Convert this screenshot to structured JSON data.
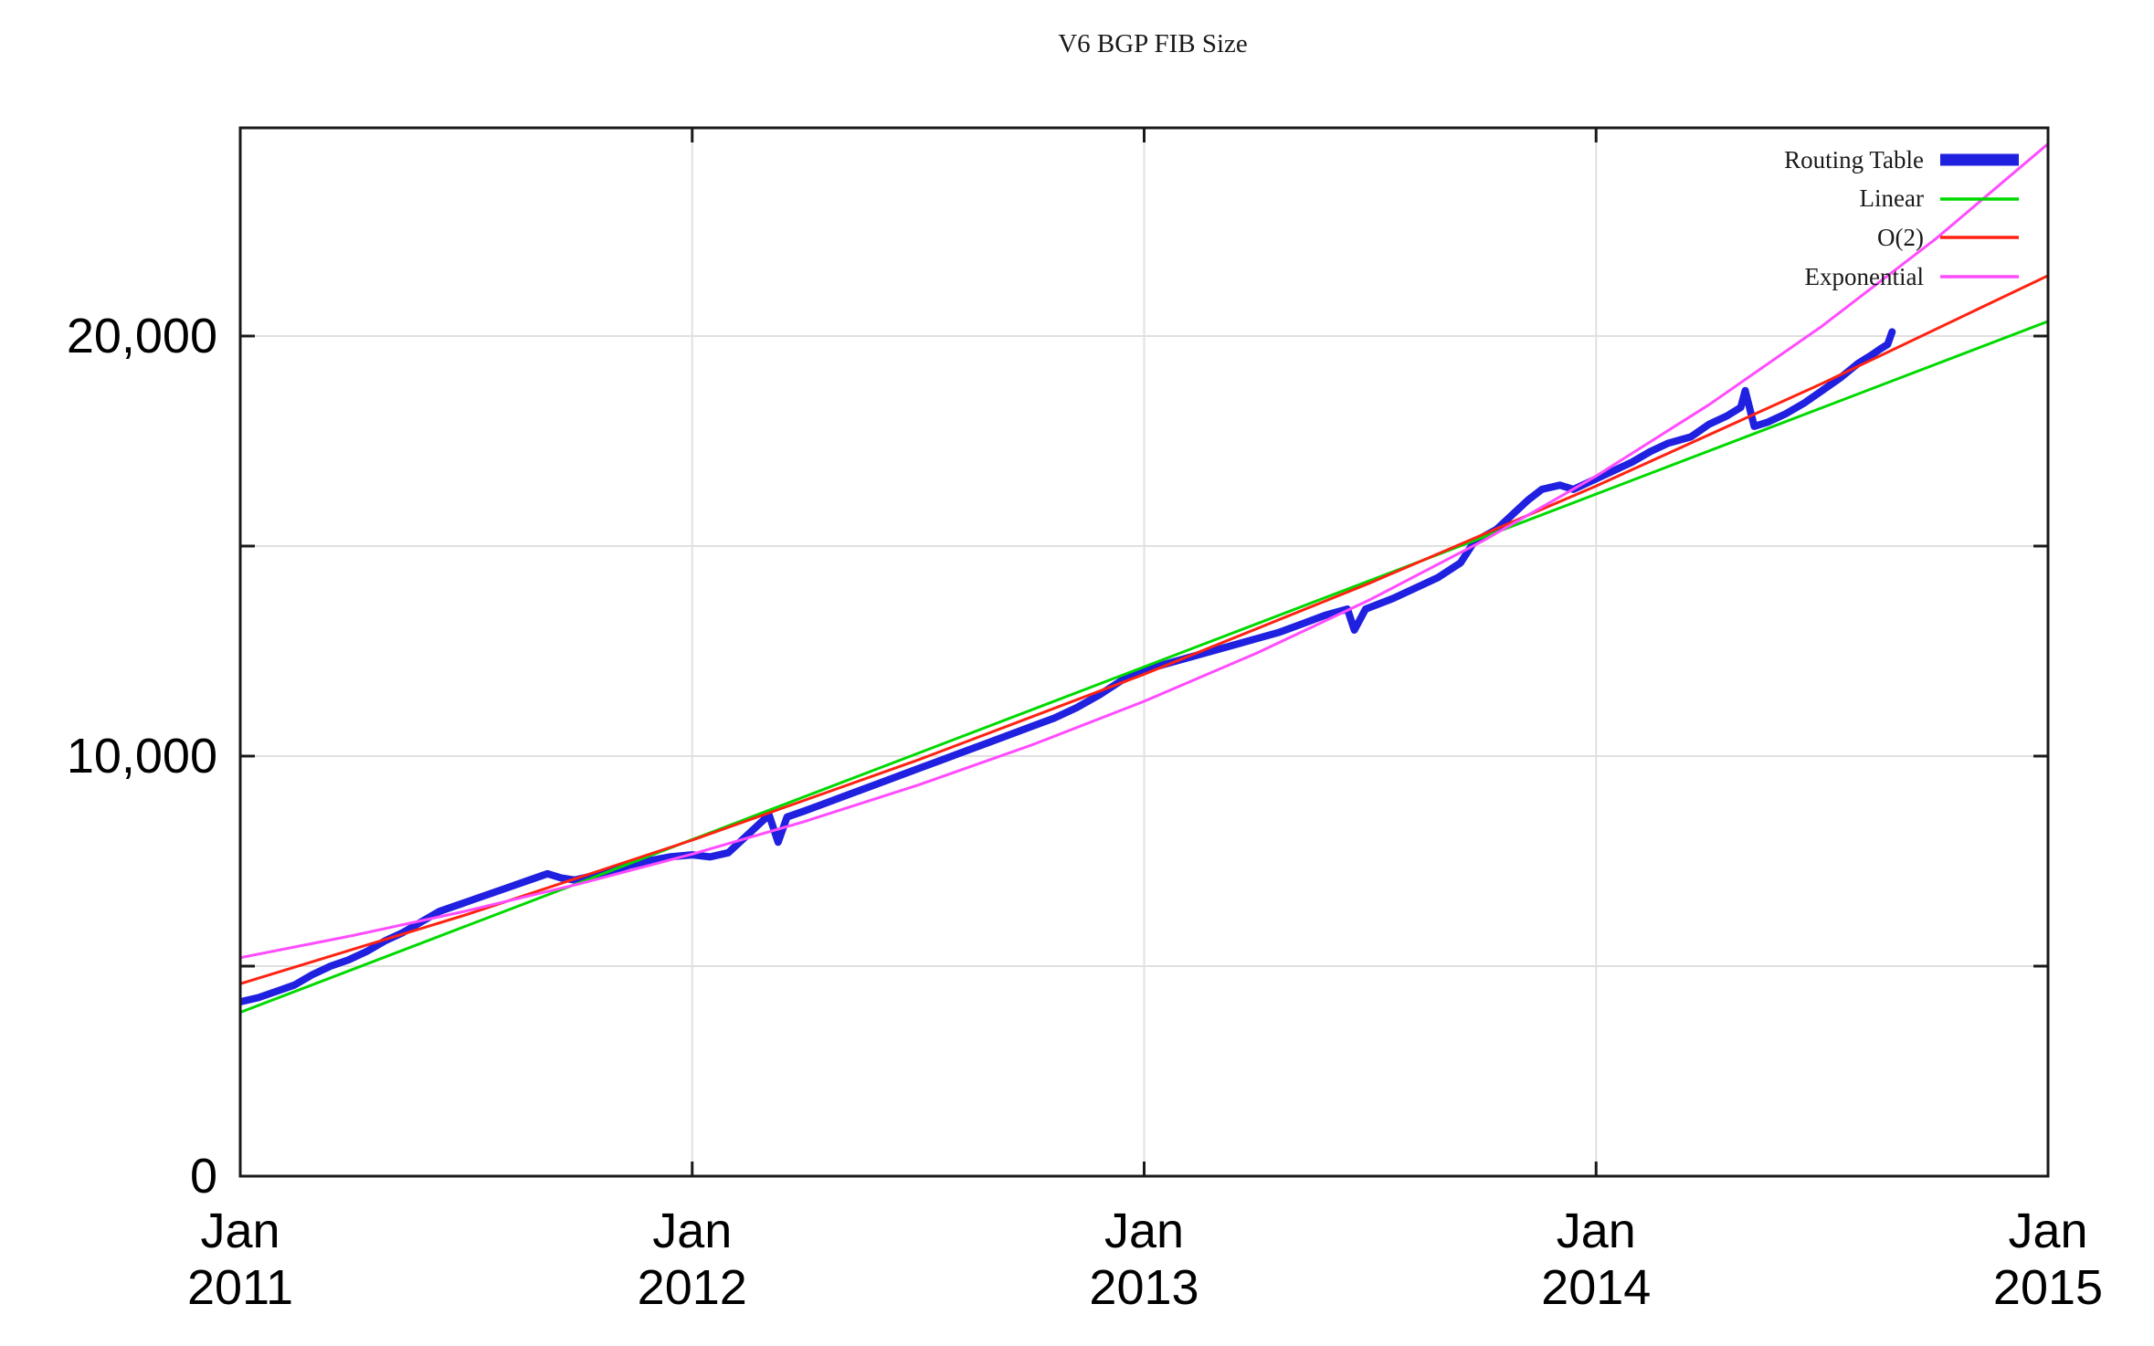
{
  "chart_data": {
    "type": "line",
    "title": "V6 BGP FIB Size",
    "xlabel": "",
    "ylabel": "",
    "grid": true,
    "legend_position": "top-right-inside",
    "colors": {
      "grid": "#e0e0e0",
      "axis": "#1a1a1a",
      "background": "#ffffff"
    },
    "x_axis": {
      "unit": "year",
      "range_years_from_2011": [
        0,
        4
      ],
      "ticks": [
        {
          "t": 0,
          "month": "Jan",
          "year": "2011"
        },
        {
          "t": 1,
          "month": "Jan",
          "year": "2012"
        },
        {
          "t": 2,
          "month": "Jan",
          "year": "2013"
        },
        {
          "t": 3,
          "month": "Jan",
          "year": "2014"
        },
        {
          "t": 4,
          "month": "Jan",
          "year": "2015"
        }
      ]
    },
    "y_axis": {
      "min": 0,
      "max": 24956,
      "grid_values": [
        5000,
        10000,
        15000,
        20000
      ],
      "tick_values": [
        0,
        5000,
        10000,
        15000,
        20000
      ],
      "labeled_ticks": [
        {
          "value": 0,
          "label": "0"
        },
        {
          "value": 10000,
          "label": "10,000"
        },
        {
          "value": 20000,
          "label": "20,000"
        }
      ]
    },
    "series": [
      {
        "name": "Routing Table",
        "color": "#2020e0",
        "width": 8,
        "points": [
          [
            0.0,
            4150
          ],
          [
            0.04,
            4250
          ],
          [
            0.08,
            4400
          ],
          [
            0.12,
            4550
          ],
          [
            0.16,
            4800
          ],
          [
            0.2,
            5000
          ],
          [
            0.24,
            5150
          ],
          [
            0.28,
            5350
          ],
          [
            0.32,
            5600
          ],
          [
            0.36,
            5800
          ],
          [
            0.4,
            6050
          ],
          [
            0.44,
            6300
          ],
          [
            0.48,
            6450
          ],
          [
            0.52,
            6600
          ],
          [
            0.56,
            6750
          ],
          [
            0.6,
            6900
          ],
          [
            0.64,
            7050
          ],
          [
            0.68,
            7200
          ],
          [
            0.71,
            7100
          ],
          [
            0.74,
            7050
          ],
          [
            0.78,
            7150
          ],
          [
            0.82,
            7250
          ],
          [
            0.86,
            7400
          ],
          [
            0.9,
            7500
          ],
          [
            0.95,
            7600
          ],
          [
            1.0,
            7650
          ],
          [
            1.04,
            7600
          ],
          [
            1.08,
            7700
          ],
          [
            1.12,
            8100
          ],
          [
            1.15,
            8400
          ],
          [
            1.17,
            8600
          ],
          [
            1.19,
            7950
          ],
          [
            1.21,
            8550
          ],
          [
            1.25,
            8700
          ],
          [
            1.3,
            8900
          ],
          [
            1.35,
            9100
          ],
          [
            1.4,
            9300
          ],
          [
            1.45,
            9500
          ],
          [
            1.5,
            9700
          ],
          [
            1.55,
            9900
          ],
          [
            1.6,
            10100
          ],
          [
            1.65,
            10300
          ],
          [
            1.7,
            10500
          ],
          [
            1.75,
            10700
          ],
          [
            1.8,
            10900
          ],
          [
            1.85,
            11150
          ],
          [
            1.9,
            11450
          ],
          [
            1.95,
            11800
          ],
          [
            2.0,
            12050
          ],
          [
            2.05,
            12200
          ],
          [
            2.1,
            12350
          ],
          [
            2.15,
            12500
          ],
          [
            2.2,
            12650
          ],
          [
            2.25,
            12800
          ],
          [
            2.3,
            12950
          ],
          [
            2.35,
            13150
          ],
          [
            2.4,
            13350
          ],
          [
            2.45,
            13500
          ],
          [
            2.465,
            13000
          ],
          [
            2.49,
            13500
          ],
          [
            2.55,
            13750
          ],
          [
            2.6,
            14000
          ],
          [
            2.65,
            14250
          ],
          [
            2.7,
            14600
          ],
          [
            2.73,
            15100
          ],
          [
            2.78,
            15400
          ],
          [
            2.82,
            15800
          ],
          [
            2.85,
            16100
          ],
          [
            2.88,
            16350
          ],
          [
            2.92,
            16450
          ],
          [
            2.95,
            16350
          ],
          [
            3.0,
            16600
          ],
          [
            3.04,
            16800
          ],
          [
            3.08,
            17000
          ],
          [
            3.12,
            17250
          ],
          [
            3.16,
            17450
          ],
          [
            3.21,
            17600
          ],
          [
            3.25,
            17900
          ],
          [
            3.29,
            18100
          ],
          [
            3.32,
            18300
          ],
          [
            3.33,
            18700
          ],
          [
            3.35,
            17850
          ],
          [
            3.38,
            17950
          ],
          [
            3.42,
            18150
          ],
          [
            3.46,
            18400
          ],
          [
            3.5,
            18700
          ],
          [
            3.54,
            19000
          ],
          [
            3.58,
            19350
          ],
          [
            3.61,
            19550
          ],
          [
            3.63,
            19700
          ],
          [
            3.645,
            19800
          ],
          [
            3.655,
            20100
          ]
        ]
      },
      {
        "name": "Linear",
        "color": "#00d900",
        "width": 3,
        "points": [
          [
            0,
            3900
          ],
          [
            4,
            20350
          ]
        ]
      },
      {
        "name": "O(2)",
        "color": "#ff2211",
        "width": 3,
        "points": [
          [
            0,
            4580
          ],
          [
            0.5,
            6224
          ],
          [
            1,
            8000
          ],
          [
            1.5,
            9909
          ],
          [
            2,
            11950
          ],
          [
            2.5,
            14124
          ],
          [
            3,
            16430
          ],
          [
            3.5,
            18869
          ],
          [
            4,
            21440
          ]
        ]
      },
      {
        "name": "Exponential",
        "color": "#ff4cff",
        "width": 3,
        "points": [
          [
            0,
            5200
          ],
          [
            0.25,
            5730
          ],
          [
            0.5,
            6314
          ],
          [
            0.75,
            6958
          ],
          [
            1,
            7667
          ],
          [
            1.25,
            8448
          ],
          [
            1.5,
            9310
          ],
          [
            1.75,
            10259
          ],
          [
            2,
            11304
          ],
          [
            2.25,
            12457
          ],
          [
            2.5,
            13726
          ],
          [
            2.75,
            15126
          ],
          [
            3,
            16668
          ],
          [
            3.25,
            18366
          ],
          [
            3.5,
            20238
          ],
          [
            3.75,
            22301
          ],
          [
            4,
            24575
          ]
        ]
      }
    ],
    "legend": {
      "entries": [
        "Routing Table",
        "Linear",
        "O(2)",
        "Exponential"
      ]
    }
  }
}
